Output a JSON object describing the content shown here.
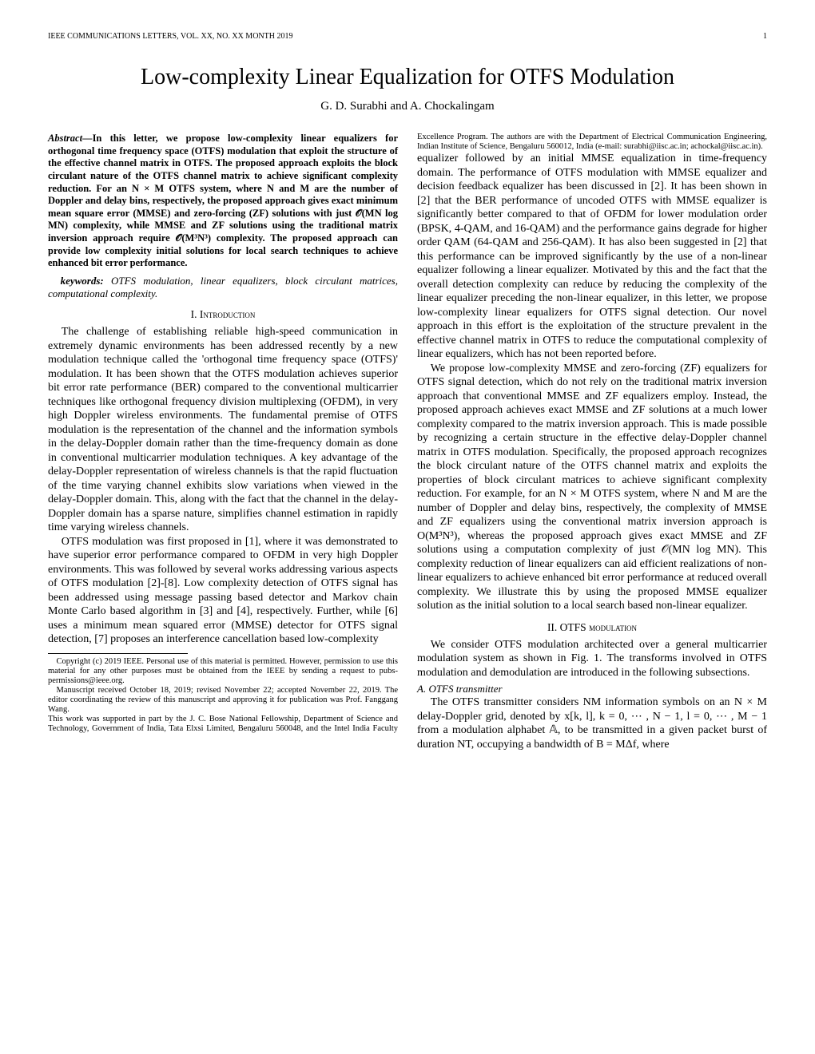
{
  "header": {
    "journal": "IEEE COMMUNICATIONS LETTERS, VOL. XX, NO. XX MONTH 2019",
    "page": "1"
  },
  "title": "Low-complexity Linear Equalization for OTFS Modulation",
  "authors": "G. D. Surabhi and A. Chockalingam",
  "abstract": {
    "label": "Abstract—",
    "text": "In this letter, we propose low-complexity linear equalizers for orthogonal time frequency space (OTFS) modulation that exploit the structure of the effective channel matrix in OTFS. The proposed approach exploits the block circulant nature of the OTFS channel matrix to achieve significant complexity reduction. For an N × M OTFS system, where N and M are the number of Doppler and delay bins, respectively, the proposed approach gives exact minimum mean square error (MMSE) and zero-forcing (ZF) solutions with just 𝒪(MN log MN) complexity, while MMSE and ZF solutions using the traditional matrix inversion approach require 𝒪(M³N³) complexity. The proposed approach can provide low complexity initial solutions for local search techniques to achieve enhanced bit error performance."
  },
  "keywords": {
    "label": "keywords:",
    "text": " OTFS modulation, linear equalizers, block circulant matrices, computational complexity."
  },
  "sections": {
    "s1": {
      "heading": "I.  Introduction"
    },
    "s2": {
      "heading": "II.  OTFS modulation"
    },
    "sub_a": {
      "heading": "A. OTFS transmitter"
    }
  },
  "body": {
    "p1": "The challenge of establishing reliable high-speed communication in extremely dynamic environments has been addressed recently by a new modulation technique called the 'orthogonal time frequency space (OTFS)' modulation. It has been shown that the OTFS modulation achieves superior bit error rate performance (BER) compared to the conventional multicarrier techniques like orthogonal frequency division multiplexing (OFDM), in very high Doppler wireless environments. The fundamental premise of OTFS modulation is the representation of the channel and the information symbols in the delay-Doppler domain rather than the time-frequency domain as done in conventional multicarrier modulation techniques. A key advantage of the delay-Doppler representation of wireless channels is that the rapid fluctuation of the time varying channel exhibits slow variations when viewed in the delay-Doppler domain. This, along with the fact that the channel in the delay-Doppler domain has a sparse nature, simplifies channel estimation in rapidly time varying wireless channels.",
    "p2": "OTFS modulation was first proposed in [1], where it was demonstrated to have superior error performance compared to OFDM in very high Doppler environments. This was followed by several works addressing various aspects of OTFS modulation [2]-[8]. Low complexity detection of OTFS signal has been addressed using message passing based detector and Markov chain Monte Carlo based algorithm in [3] and [4], respectively. Further, while [6] uses a minimum mean squared error (MMSE) detector for OTFS signal detection, [7] proposes an interference cancellation based low-complexity",
    "p3": "equalizer followed by an initial MMSE equalization in time-frequency domain. The performance of OTFS modulation with MMSE equalizer and decision feedback equalizer has been discussed in [2]. It has been shown in [2] that the BER performance of uncoded OTFS with MMSE equalizer is significantly better compared to that of OFDM for lower modulation order (BPSK, 4-QAM, and 16-QAM) and the performance gains degrade for higher order QAM (64-QAM and 256-QAM). It has also been suggested in [2] that this performance can be improved significantly by the use of a non-linear equalizer following a linear equalizer. Motivated by this and the fact that the overall detection complexity can reduce by reducing the complexity of the linear equalizer preceding the non-linear equalizer, in this letter, we propose low-complexity linear equalizers for OTFS signal detection. Our novel approach in this effort is the exploitation of the structure prevalent in the effective channel matrix in OTFS to reduce the computational complexity of linear equalizers, which has not been reported before.",
    "p4": "We propose low-complexity MMSE and zero-forcing (ZF) equalizers for OTFS signal detection, which do not rely on the traditional matrix inversion approach that conventional MMSE and ZF equalizers employ. Instead, the proposed approach achieves exact MMSE and ZF solutions at a much lower complexity compared to the matrix inversion approach. This is made possible by recognizing a certain structure in the effective delay-Doppler channel matrix in OTFS modulation. Specifically, the proposed approach recognizes the block circulant nature of the OTFS channel matrix and exploits the properties of block circulant matrices to achieve significant complexity reduction. For example, for an N × M OTFS system, where N and M are the number of Doppler and delay bins, respectively, the complexity of MMSE and ZF equalizers using the conventional matrix inversion approach is O(M³N³), whereas the proposed approach gives exact MMSE and ZF solutions using a computation complexity of just 𝒪(MN log MN). This complexity reduction of linear equalizers can aid efficient realizations of non-linear equalizers to achieve enhanced bit error performance at reduced overall complexity. We illustrate this by using the proposed MMSE equalizer solution as the initial solution to a local search based non-linear equalizer.",
    "p5": "We consider OTFS modulation architected over a general multicarrier modulation system as shown in Fig. 1. The transforms involved in OTFS modulation and demodulation are introduced in the following subsections.",
    "p6": "The OTFS transmitter considers NM information symbols on an N × M delay-Doppler grid, denoted by x[k, l], k = 0, ⋯ , N − 1, l = 0, ⋯ , M − 1 from a modulation alphabet 𝔸, to be transmitted in a given packet burst of duration NT, occupying a bandwidth of B = MΔf, where"
  },
  "footnotes": {
    "f1": "Copyright (c) 2019 IEEE. Personal use of this material is permitted. However, permission to use this material for any other purposes must be obtained from the IEEE by sending a request to pubs-permissions@ieee.org.",
    "f2": "Manuscript received October 18, 2019; revised November 22; accepted November 22, 2019. The editor coordinating the review of this manuscript and approving it for publication was Prof. Fanggang Wang.",
    "f3": "This work was supported in part by the J. C. Bose National Fellowship, Department of Science and Technology, Government of India, Tata Elxsi Limited, Bengaluru 560048, and the Intel India Faculty Excellence Program. The authors are with the Department of Electrical Communication Engineering, Indian Institute of Science, Bengaluru 560012, India (e-mail: surabhi@iisc.ac.in; achockal@iisc.ac.in)."
  },
  "colors": {
    "text": "#000000",
    "background": "#ffffff"
  },
  "typography": {
    "body_family": "Times New Roman",
    "body_size_pt": 10,
    "title_size_pt": 24,
    "footnote_size_pt": 8
  }
}
